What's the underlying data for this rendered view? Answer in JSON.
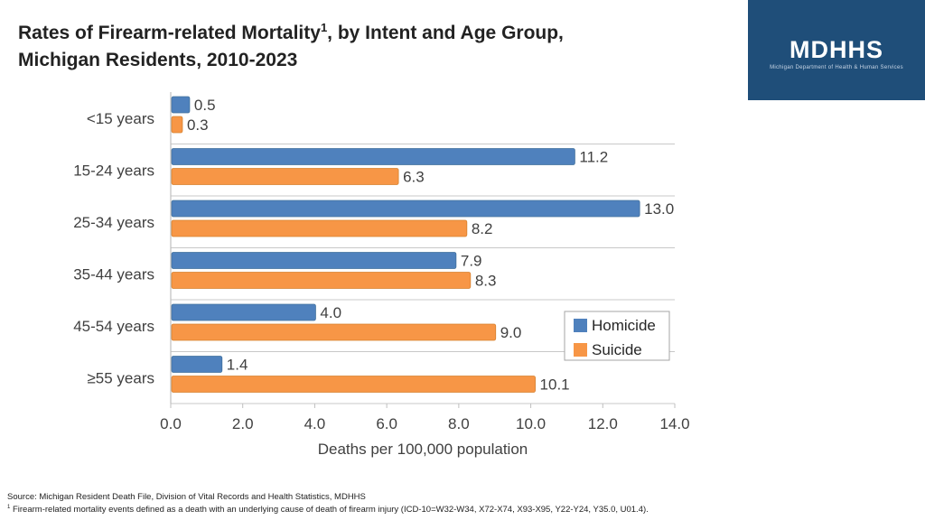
{
  "header": {
    "title_part1": "Rates of Firearm-related Mortality",
    "title_sup": "1",
    "title_part2": ", by Intent and Age Group,",
    "title_line2": "Michigan Residents, 2010-2023"
  },
  "logo": {
    "text": "MDHHS",
    "subtitle": "Michigan Department of Health & Human Services"
  },
  "chart_data": {
    "type": "bar",
    "orientation": "horizontal",
    "categories": [
      "<15 years",
      "15-24 years",
      "25-34 years",
      "35-44 years",
      "45-54 years",
      "≥55 years"
    ],
    "series": [
      {
        "name": "Homicide",
        "values": [
          0.5,
          11.2,
          13.0,
          7.9,
          4.0,
          1.4
        ],
        "color": "#4f81bd"
      },
      {
        "name": "Suicide",
        "values": [
          0.3,
          6.3,
          8.2,
          8.3,
          9.0,
          10.1
        ],
        "color": "#f79646"
      }
    ],
    "xlabel": "Deaths per 100,000 population",
    "xlim": [
      0,
      14
    ],
    "xticks": [
      0,
      2,
      4,
      6,
      8,
      10,
      12,
      14
    ],
    "tick_format": "0.0",
    "legend_position": "right"
  },
  "footer": {
    "source": "Source: Michigan Resident Death File, Division of Vital Records and Health Statistics, MDHHS",
    "footnote_mark": "1",
    "footnote": " Firearm-related mortality events defined as a death with an underlying cause of death of firearm injury (ICD-10=W32-W34, X72-X74, X93-X95, Y22-Y24, Y35.0, U01.4)."
  }
}
